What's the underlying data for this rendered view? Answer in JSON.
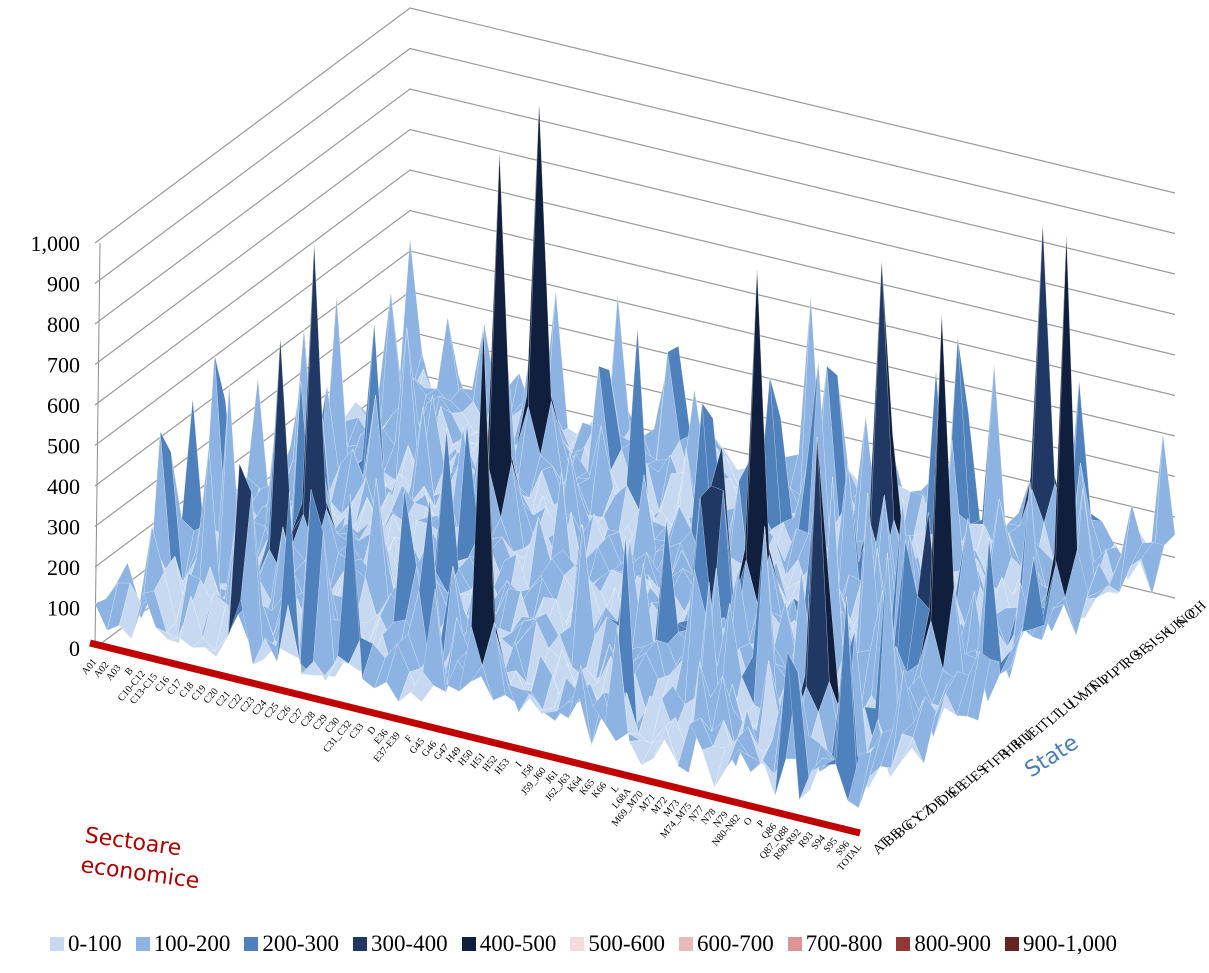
{
  "chart_data": {
    "type": "surface",
    "xlabel": "Sectoare economice",
    "ylabel": "State",
    "zlim": [
      0,
      1000
    ],
    "z_ticks": [
      "0",
      "100",
      "200",
      "300",
      "400",
      "500",
      "600",
      "700",
      "800",
      "900",
      "1,000"
    ],
    "x_categories": [
      "A01",
      "A02",
      "A03",
      "B",
      "C10-C12",
      "C13-C15",
      "C16",
      "C17",
      "C18",
      "C19",
      "C20",
      "C21",
      "C22",
      "C23",
      "C24",
      "C25",
      "C26",
      "C27",
      "C28",
      "C29",
      "C30",
      "C31_C32",
      "C33",
      "D",
      "E36",
      "E37-E39",
      "F",
      "G45",
      "G46",
      "G47",
      "H49",
      "H50",
      "H51",
      "H52",
      "H53",
      "I",
      "J58",
      "J59_J60",
      "J61",
      "J62_J63",
      "K64",
      "K65",
      "K66",
      "L",
      "L68A",
      "M69_M70",
      "M71",
      "M72",
      "M73",
      "M74_M75",
      "N77",
      "N78",
      "N79",
      "N80-N82",
      "O",
      "P",
      "Q86",
      "Q87_Q88",
      "R90-R92",
      "R93",
      "S94",
      "S95",
      "S96",
      "TOTAL"
    ],
    "y_categories": [
      "AT",
      "BE",
      "BG",
      "CY",
      "CZ",
      "DE",
      "DK",
      "EE",
      "EL",
      "ES",
      "FI",
      "FR",
      "HR",
      "HU",
      "IE",
      "IT",
      "LT",
      "LU",
      "LV",
      "MT",
      "NL",
      "PL",
      "PT",
      "RO",
      "SE",
      "SI",
      "SK",
      "UK",
      "NO",
      "CH"
    ],
    "grid": true,
    "legend_position": "bottom",
    "legend": [
      {
        "label": "0-100",
        "color": "#c6d9f1"
      },
      {
        "label": "100-200",
        "color": "#8db3e2"
      },
      {
        "label": "200-300",
        "color": "#4f81bd"
      },
      {
        "label": "300-400",
        "color": "#1f3864"
      },
      {
        "label": "400-500",
        "color": "#0f1f3d"
      },
      {
        "label": "500-600",
        "color": "#f2dcdb"
      },
      {
        "label": "600-700",
        "color": "#e6b9b8"
      },
      {
        "label": "700-800",
        "color": "#d99694"
      },
      {
        "label": "800-900",
        "color": "#953735"
      },
      {
        "label": "900-1,000",
        "color": "#632523"
      }
    ],
    "peaks": [
      {
        "x": "C20",
        "value": 890
      },
      {
        "x": "C29",
        "value": 1040
      },
      {
        "x": "C26",
        "value": 1000
      },
      {
        "x": "H51",
        "value": 1020
      },
      {
        "x": "C19",
        "value": 690
      },
      {
        "x": "K66",
        "value": 960
      },
      {
        "x": "M71",
        "value": 870
      },
      {
        "x": "N80-N82",
        "value": 870
      },
      {
        "x": "P",
        "value": 820
      },
      {
        "x": "R93",
        "value": 1010
      },
      {
        "x": "TOTAL",
        "value": 1100
      }
    ]
  }
}
